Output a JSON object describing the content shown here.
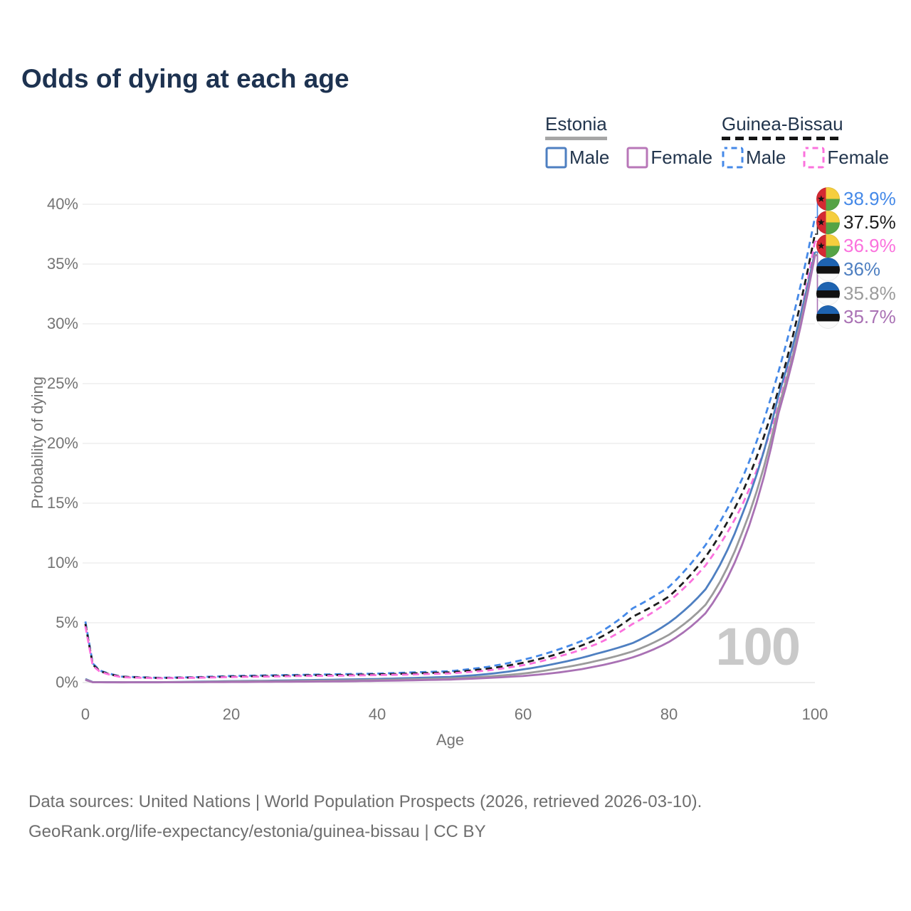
{
  "title": "Odds of dying at each age",
  "legend": {
    "groups": [
      {
        "name": "Estonia",
        "line_style": "solid",
        "underline_color": "#a6a6a6",
        "items": [
          {
            "label": "Male",
            "color": "#4e7fc1"
          },
          {
            "label": "Female",
            "color": "#b877b8"
          }
        ]
      },
      {
        "name": "Guinea-Bissau",
        "line_style": "dashed",
        "underline_color": "#151515",
        "items": [
          {
            "label": "Male",
            "color": "#4589e8"
          },
          {
            "label": "Female",
            "color": "#fb71dd"
          }
        ]
      }
    ]
  },
  "watermark": "100",
  "footer": {
    "line1": "Data sources: United Nations | World Population Prospects (2026, retrieved 2026-03-10).",
    "line2": "GeoRank.org/life-expectancy/estonia/guinea-bissau | CC BY"
  },
  "chart_data": {
    "type": "line",
    "title": "Odds of dying at each age",
    "xlabel": "Age",
    "ylabel": "Probability of dying",
    "xlim": [
      0,
      100
    ],
    "ylim": [
      0,
      40
    ],
    "x_ticks": [
      0,
      20,
      40,
      60,
      80,
      100
    ],
    "y_ticks": [
      0,
      5,
      10,
      15,
      20,
      25,
      30,
      35,
      40
    ],
    "y_tick_suffix": "%",
    "grid": "horizontal",
    "legend_position": "top-right",
    "series": [
      {
        "name": "Guinea-Bissau Male",
        "country": "Guinea-Bissau",
        "sex": "male",
        "color": "#4589e8",
        "dashed": true,
        "end_value": 38.9,
        "end_label": "38.9%",
        "points": [
          [
            0,
            5.1
          ],
          [
            1,
            1.6
          ],
          [
            2,
            1.0
          ],
          [
            5,
            0.5
          ],
          [
            10,
            0.4
          ],
          [
            15,
            0.45
          ],
          [
            20,
            0.55
          ],
          [
            25,
            0.6
          ],
          [
            30,
            0.65
          ],
          [
            35,
            0.7
          ],
          [
            40,
            0.75
          ],
          [
            45,
            0.85
          ],
          [
            50,
            0.95
          ],
          [
            55,
            1.3
          ],
          [
            60,
            1.9
          ],
          [
            65,
            2.8
          ],
          [
            70,
            4.0
          ],
          [
            75,
            6.2
          ],
          [
            80,
            8.0
          ],
          [
            85,
            11.5
          ],
          [
            90,
            17.0
          ],
          [
            95,
            26.0
          ],
          [
            100,
            38.9
          ]
        ]
      },
      {
        "name": "Guinea-Bissau Both sexes",
        "country": "Guinea-Bissau",
        "sex": "all",
        "color": "#1d1d1d",
        "dashed": true,
        "end_value": 37.5,
        "end_label": "37.5%",
        "points": [
          [
            0,
            4.9
          ],
          [
            1,
            1.5
          ],
          [
            2,
            0.95
          ],
          [
            5,
            0.48
          ],
          [
            10,
            0.38
          ],
          [
            15,
            0.42
          ],
          [
            20,
            0.5
          ],
          [
            25,
            0.55
          ],
          [
            30,
            0.6
          ],
          [
            35,
            0.63
          ],
          [
            40,
            0.68
          ],
          [
            45,
            0.76
          ],
          [
            50,
            0.85
          ],
          [
            55,
            1.15
          ],
          [
            60,
            1.65
          ],
          [
            65,
            2.45
          ],
          [
            70,
            3.6
          ],
          [
            75,
            5.5
          ],
          [
            80,
            7.2
          ],
          [
            85,
            10.5
          ],
          [
            90,
            15.8
          ],
          [
            95,
            24.5
          ],
          [
            100,
            37.5
          ]
        ]
      },
      {
        "name": "Guinea-Bissau Female",
        "country": "Guinea-Bissau",
        "sex": "female",
        "color": "#fb71dd",
        "dashed": true,
        "end_value": 36.9,
        "end_label": "36.9%",
        "points": [
          [
            0,
            4.7
          ],
          [
            1,
            1.4
          ],
          [
            2,
            0.9
          ],
          [
            5,
            0.45
          ],
          [
            10,
            0.36
          ],
          [
            15,
            0.4
          ],
          [
            20,
            0.46
          ],
          [
            25,
            0.5
          ],
          [
            30,
            0.55
          ],
          [
            35,
            0.58
          ],
          [
            40,
            0.62
          ],
          [
            45,
            0.68
          ],
          [
            50,
            0.77
          ],
          [
            55,
            1.0
          ],
          [
            60,
            1.45
          ],
          [
            65,
            2.2
          ],
          [
            70,
            3.2
          ],
          [
            75,
            4.9
          ],
          [
            80,
            6.8
          ],
          [
            85,
            9.8
          ],
          [
            90,
            14.8
          ],
          [
            95,
            23.2
          ],
          [
            100,
            36.9
          ]
        ]
      },
      {
        "name": "Estonia Male",
        "country": "Estonia",
        "sex": "male",
        "color": "#4e7fc1",
        "dashed": false,
        "end_value": 36.0,
        "end_label": "36%",
        "points": [
          [
            0,
            0.3
          ],
          [
            1,
            0.04
          ],
          [
            5,
            0.025
          ],
          [
            10,
            0.03
          ],
          [
            15,
            0.07
          ],
          [
            20,
            0.12
          ],
          [
            25,
            0.15
          ],
          [
            30,
            0.2
          ],
          [
            35,
            0.25
          ],
          [
            40,
            0.3
          ],
          [
            45,
            0.38
          ],
          [
            50,
            0.47
          ],
          [
            55,
            0.7
          ],
          [
            60,
            1.1
          ],
          [
            65,
            1.65
          ],
          [
            70,
            2.4
          ],
          [
            75,
            3.3
          ],
          [
            80,
            5.0
          ],
          [
            85,
            7.8
          ],
          [
            90,
            14.0
          ],
          [
            95,
            24.0
          ],
          [
            100,
            36.0
          ]
        ]
      },
      {
        "name": "Estonia Both sexes",
        "country": "Estonia",
        "sex": "all",
        "color": "#9b9b9b",
        "dashed": false,
        "end_value": 35.8,
        "end_label": "35.8%",
        "points": [
          [
            0,
            0.25
          ],
          [
            1,
            0.03
          ],
          [
            5,
            0.02
          ],
          [
            10,
            0.025
          ],
          [
            15,
            0.05
          ],
          [
            20,
            0.09
          ],
          [
            25,
            0.11
          ],
          [
            30,
            0.14
          ],
          [
            35,
            0.18
          ],
          [
            40,
            0.22
          ],
          [
            45,
            0.28
          ],
          [
            50,
            0.35
          ],
          [
            55,
            0.5
          ],
          [
            60,
            0.75
          ],
          [
            65,
            1.2
          ],
          [
            70,
            1.8
          ],
          [
            75,
            2.6
          ],
          [
            80,
            4.0
          ],
          [
            85,
            6.5
          ],
          [
            90,
            12.5
          ],
          [
            95,
            23.0
          ],
          [
            100,
            35.8
          ]
        ]
      },
      {
        "name": "Estonia Female",
        "country": "Estonia",
        "sex": "female",
        "color": "#a971b4",
        "dashed": false,
        "end_value": 35.7,
        "end_label": "35.7%",
        "points": [
          [
            0,
            0.22
          ],
          [
            1,
            0.025
          ],
          [
            5,
            0.015
          ],
          [
            10,
            0.02
          ],
          [
            15,
            0.03
          ],
          [
            20,
            0.045
          ],
          [
            25,
            0.06
          ],
          [
            30,
            0.08
          ],
          [
            35,
            0.1
          ],
          [
            40,
            0.14
          ],
          [
            45,
            0.19
          ],
          [
            50,
            0.25
          ],
          [
            55,
            0.38
          ],
          [
            60,
            0.55
          ],
          [
            65,
            0.85
          ],
          [
            70,
            1.35
          ],
          [
            75,
            2.1
          ],
          [
            80,
            3.4
          ],
          [
            85,
            5.8
          ],
          [
            90,
            11.5
          ],
          [
            95,
            22.5
          ],
          [
            100,
            35.7
          ]
        ]
      }
    ],
    "flag_colors": {
      "Guinea-Bissau": {
        "red": "#d42a33",
        "yellow": "#f5ce3e",
        "green": "#55a345",
        "star": "#141414"
      },
      "Estonia": {
        "blue": "#1e63b0",
        "black": "#111111",
        "white": "#fafafa"
      }
    }
  }
}
